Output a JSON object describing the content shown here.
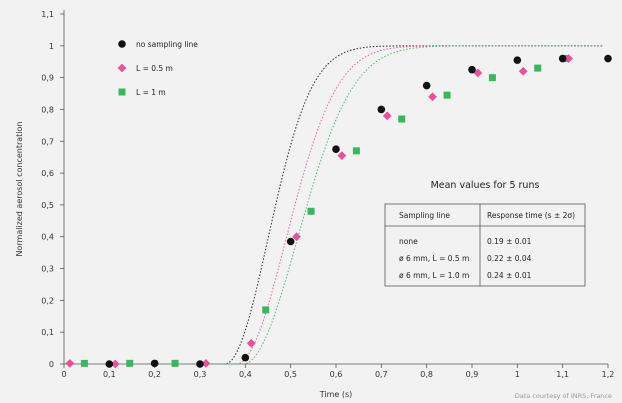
{
  "chart_data": {
    "type": "scatter",
    "xlabel": "Time (s)",
    "ylabel": "Normalized aerosol concentration",
    "xlim": [
      0,
      1.2
    ],
    "ylim": [
      0,
      1.1
    ],
    "x_ticks": [
      "0",
      "0,1",
      "0,2",
      "0,3",
      "0,4",
      "0,5",
      "0,6",
      "0,7",
      "0,8",
      "0,9",
      "1",
      "1,1",
      "1,2"
    ],
    "y_ticks": [
      "0",
      "0,1",
      "0,2",
      "0,3",
      "0,4",
      "0,5",
      "0,6",
      "0,7",
      "0,8",
      "0,9",
      "1",
      "1,1"
    ],
    "grid": false,
    "legend_position": "top-left",
    "series": [
      {
        "name": "no sampling line",
        "marker": "circle",
        "color": "#111111",
        "points": [
          [
            0.1,
            0.0
          ],
          [
            0.2,
            0.002
          ],
          [
            0.3,
            0.0
          ],
          [
            0.4,
            0.02
          ],
          [
            0.5,
            0.385
          ],
          [
            0.6,
            0.675
          ],
          [
            0.7,
            0.8
          ],
          [
            0.8,
            0.875
          ],
          [
            0.9,
            0.925
          ],
          [
            1.0,
            0.955
          ],
          [
            1.1,
            0.96
          ],
          [
            1.2,
            0.96
          ]
        ]
      },
      {
        "name": "L = 0.5 m",
        "marker": "diamond",
        "color": "#e8529a",
        "points": [
          [
            0.013,
            0.002
          ],
          [
            0.113,
            0.0
          ],
          [
            0.313,
            0.002
          ],
          [
            0.413,
            0.065
          ],
          [
            0.513,
            0.4
          ],
          [
            0.613,
            0.655
          ],
          [
            0.713,
            0.78
          ],
          [
            0.813,
            0.84
          ],
          [
            0.913,
            0.915
          ],
          [
            1.013,
            0.92
          ],
          [
            1.113,
            0.96
          ]
        ]
      },
      {
        "name": "L = 1 m",
        "marker": "square",
        "color": "#3bb65e",
        "points": [
          [
            0.045,
            0.002
          ],
          [
            0.145,
            0.002
          ],
          [
            0.245,
            0.002
          ],
          [
            0.445,
            0.17
          ],
          [
            0.545,
            0.48
          ],
          [
            0.645,
            0.67
          ],
          [
            0.745,
            0.77
          ],
          [
            0.845,
            0.845
          ],
          [
            0.945,
            0.9
          ],
          [
            1.045,
            0.93
          ],
          [
            1.105,
            0.96
          ]
        ]
      }
    ],
    "fit_curves": [
      {
        "series": "no sampling line",
        "t0": 0.355,
        "tau": 0.19,
        "color": "#111111"
      },
      {
        "series": "L = 0.5 m",
        "t0": 0.38,
        "tau": 0.22,
        "color": "#e8529a"
      },
      {
        "series": "L = 1 m",
        "t0": 0.395,
        "tau": 0.24,
        "color": "#3bb65e"
      }
    ]
  },
  "table": {
    "title": "Mean values for 5 runs",
    "headers": [
      "Sampling line",
      "Response time (s ± 2σ)"
    ],
    "rows": [
      [
        "none",
        "0.19 ± 0.01"
      ],
      [
        "ø 6 mm, L = 0.5 m",
        "0.22 ± 0.04"
      ],
      [
        "ø 6 mm, L = 1.0 m",
        "0.24 ± 0.01"
      ]
    ]
  },
  "credit": "Data courtesy of INRS, France"
}
